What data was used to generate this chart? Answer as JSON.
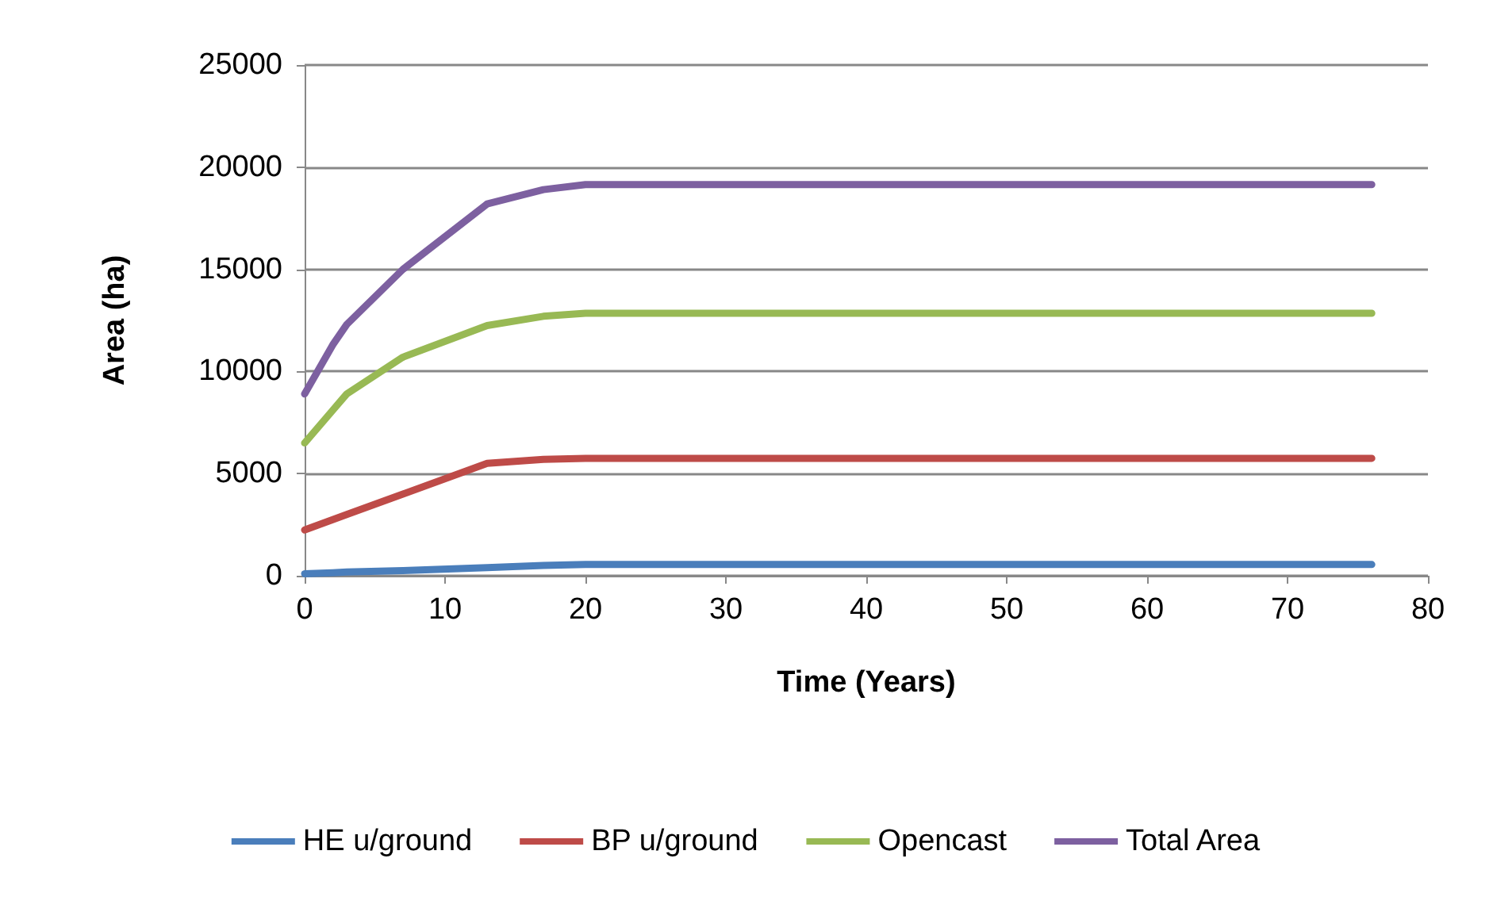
{
  "chart_data": {
    "type": "line",
    "xlabel": "Time (Years)",
    "ylabel": "Area (ha)",
    "x": [
      0,
      2,
      3,
      7,
      13,
      17,
      20,
      76
    ],
    "series": [
      {
        "name": "HE u/ground",
        "color": "#4a7ebb",
        "values": [
          100,
          150,
          180,
          250,
          400,
          500,
          550,
          550
        ]
      },
      {
        "name": "BP u/ground",
        "color": "#be4b48",
        "values": [
          2240,
          2750,
          3000,
          4000,
          5500,
          5700,
          5750,
          5750
        ]
      },
      {
        "name": "Opencast",
        "color": "#98b954",
        "values": [
          6500,
          8100,
          8900,
          10700,
          12250,
          12700,
          12850,
          12850
        ]
      },
      {
        "name": "Total Area",
        "color": "#7d60a0",
        "values": [
          8900,
          11300,
          12300,
          15000,
          18200,
          18900,
          19150,
          19150
        ]
      }
    ],
    "xlim": [
      0,
      80
    ],
    "xticks": [
      0,
      10,
      20,
      30,
      40,
      50,
      60,
      70,
      80
    ],
    "ylim": [
      0,
      25000
    ],
    "yticks": [
      0,
      5000,
      10000,
      15000,
      20000,
      25000
    ],
    "grid": "y",
    "legend": "bottom",
    "marker": "none",
    "line_style": "solid"
  }
}
